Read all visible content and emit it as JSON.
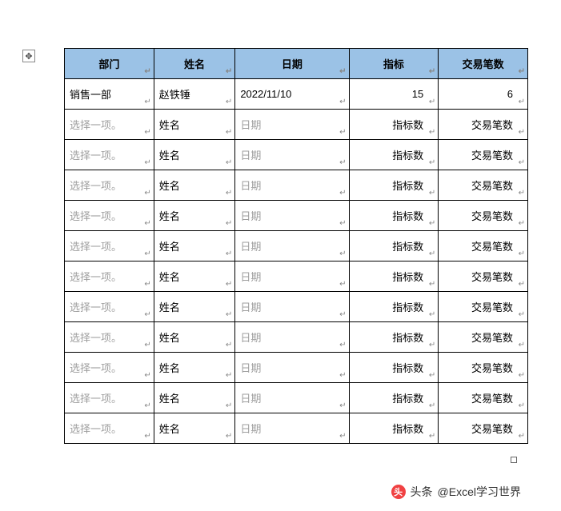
{
  "headers": {
    "dept": "部门",
    "name": "姓名",
    "date": "日期",
    "metric": "指标",
    "count": "交易笔数"
  },
  "filled_row": {
    "dept": "销售一部",
    "name": "赵铁锤",
    "date": "2022/11/10",
    "metric": "15",
    "count": "6"
  },
  "placeholder_row": {
    "dept": "选择一项。",
    "name": "姓名",
    "date": "日期",
    "metric": "指标数",
    "count": "交易笔数"
  },
  "attribution": {
    "prefix": "头条",
    "handle": "@Excel学习世界"
  },
  "paragraph_mark": "↵",
  "move_glyph": "✥"
}
